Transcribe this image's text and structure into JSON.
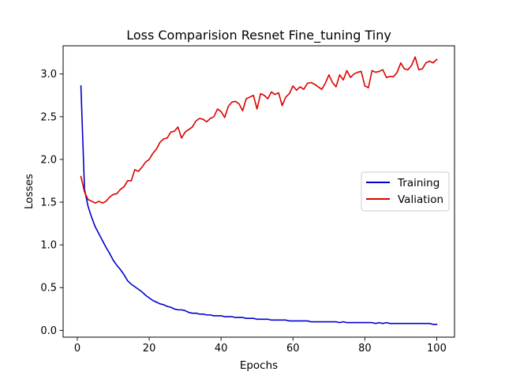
{
  "chart_data": {
    "type": "line",
    "title": "Loss Comparision Resnet Fine_tuning Tiny",
    "xlabel": "Epochs",
    "ylabel": "Losses",
    "xlim": [
      -3.95,
      104.95
    ],
    "ylim": [
      -0.08,
      3.33
    ],
    "xticks": [
      0,
      20,
      40,
      60,
      80,
      100
    ],
    "yticks": [
      0.0,
      0.5,
      1.0,
      1.5,
      2.0,
      2.5,
      3.0
    ],
    "xtick_labels": [
      "0",
      "20",
      "40",
      "60",
      "80",
      "100"
    ],
    "ytick_labels": [
      "0.0",
      "0.5",
      "1.0",
      "1.5",
      "2.0",
      "2.5",
      "3.0"
    ],
    "grid": false,
    "legend_position": "center-right",
    "x": [
      1,
      2,
      3,
      4,
      5,
      6,
      7,
      8,
      9,
      10,
      11,
      12,
      13,
      14,
      15,
      16,
      17,
      18,
      19,
      20,
      21,
      22,
      23,
      24,
      25,
      26,
      27,
      28,
      29,
      30,
      31,
      32,
      33,
      34,
      35,
      36,
      37,
      38,
      39,
      40,
      41,
      42,
      43,
      44,
      45,
      46,
      47,
      48,
      49,
      50,
      51,
      52,
      53,
      54,
      55,
      56,
      57,
      58,
      59,
      60,
      61,
      62,
      63,
      64,
      65,
      66,
      67,
      68,
      69,
      70,
      71,
      72,
      73,
      74,
      75,
      76,
      77,
      78,
      79,
      80,
      81,
      82,
      83,
      84,
      85,
      86,
      87,
      88,
      89,
      90,
      91,
      92,
      93,
      94,
      95,
      96,
      97,
      98,
      99,
      100
    ],
    "series": [
      {
        "name": "Training",
        "color": "#0000cc",
        "values": [
          2.86,
          1.65,
          1.45,
          1.32,
          1.21,
          1.13,
          1.05,
          0.97,
          0.9,
          0.82,
          0.76,
          0.71,
          0.65,
          0.58,
          0.54,
          0.51,
          0.48,
          0.45,
          0.41,
          0.38,
          0.35,
          0.33,
          0.31,
          0.3,
          0.28,
          0.27,
          0.25,
          0.24,
          0.24,
          0.23,
          0.21,
          0.2,
          0.2,
          0.19,
          0.19,
          0.18,
          0.18,
          0.17,
          0.17,
          0.17,
          0.16,
          0.16,
          0.16,
          0.15,
          0.15,
          0.15,
          0.14,
          0.14,
          0.14,
          0.13,
          0.13,
          0.13,
          0.13,
          0.12,
          0.12,
          0.12,
          0.12,
          0.12,
          0.11,
          0.11,
          0.11,
          0.11,
          0.11,
          0.11,
          0.1,
          0.1,
          0.1,
          0.1,
          0.1,
          0.1,
          0.1,
          0.1,
          0.09,
          0.1,
          0.09,
          0.09,
          0.09,
          0.09,
          0.09,
          0.09,
          0.09,
          0.09,
          0.08,
          0.09,
          0.08,
          0.09,
          0.08,
          0.08,
          0.08,
          0.08,
          0.08,
          0.08,
          0.08,
          0.08,
          0.08,
          0.08,
          0.08,
          0.08,
          0.07,
          0.07
        ]
      },
      {
        "name": "Valiation",
        "color": "#dd0000",
        "values": [
          1.8,
          1.62,
          1.53,
          1.51,
          1.49,
          1.51,
          1.49,
          1.51,
          1.56,
          1.59,
          1.6,
          1.65,
          1.68,
          1.75,
          1.75,
          1.88,
          1.86,
          1.91,
          1.97,
          2.0,
          2.07,
          2.12,
          2.2,
          2.24,
          2.25,
          2.32,
          2.33,
          2.38,
          2.25,
          2.32,
          2.35,
          2.38,
          2.45,
          2.48,
          2.47,
          2.44,
          2.48,
          2.5,
          2.59,
          2.56,
          2.49,
          2.62,
          2.67,
          2.68,
          2.65,
          2.57,
          2.71,
          2.73,
          2.75,
          2.59,
          2.77,
          2.75,
          2.71,
          2.79,
          2.76,
          2.78,
          2.63,
          2.73,
          2.77,
          2.86,
          2.81,
          2.85,
          2.82,
          2.89,
          2.9,
          2.88,
          2.85,
          2.82,
          2.89,
          2.99,
          2.9,
          2.85,
          2.99,
          2.93,
          3.04,
          2.96,
          3.0,
          3.02,
          3.03,
          2.86,
          2.84,
          3.04,
          3.02,
          3.03,
          3.05,
          2.96,
          2.97,
          2.97,
          3.02,
          3.13,
          3.06,
          3.05,
          3.1,
          3.2,
          3.05,
          3.06,
          3.13,
          3.15,
          3.13,
          3.17
        ]
      }
    ]
  }
}
